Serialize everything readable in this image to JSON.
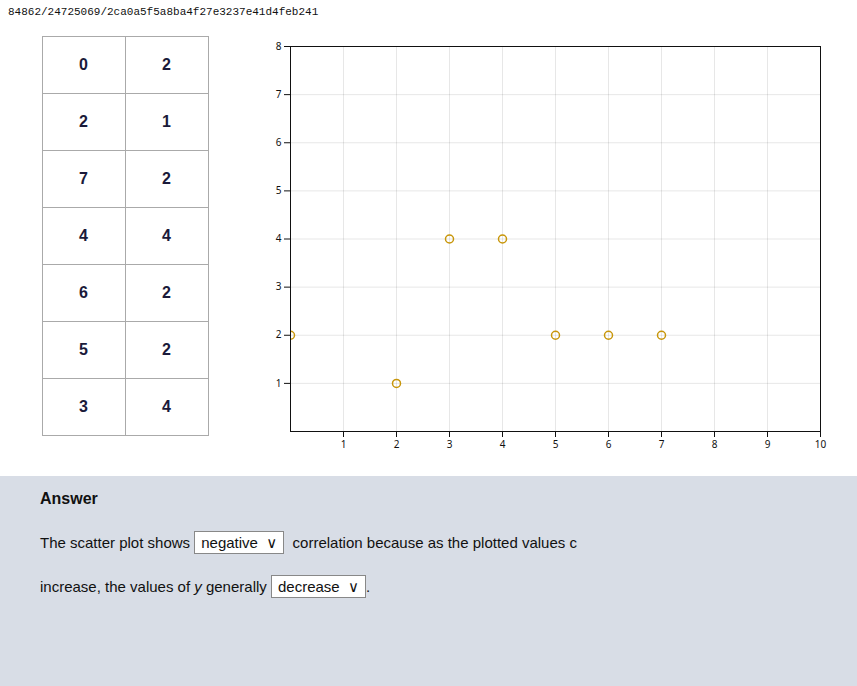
{
  "chart_data": {
    "type": "scatter",
    "title": "84862/24725069/2ca0a5f5a8ba4f27e3237e41d4feb241",
    "table": {
      "col1": [
        0,
        2,
        7,
        4,
        6,
        5,
        3
      ],
      "col2": [
        2,
        1,
        2,
        4,
        2,
        2,
        4
      ]
    },
    "x": [
      0,
      2,
      7,
      4,
      6,
      5,
      3
    ],
    "values": [
      2,
      1,
      2,
      4,
      2,
      2,
      4
    ],
    "color": "#c8960a",
    "marker": "circle",
    "xlim": [
      0,
      10
    ],
    "ylim": [
      0,
      8
    ],
    "xticks": [
      1,
      2,
      3,
      4,
      5,
      6,
      7,
      8,
      9,
      10
    ],
    "yticks": [
      1,
      2,
      3,
      4,
      5,
      6,
      7,
      8
    ],
    "grid": true,
    "annotations": [
      [
        "Answer"
      ],
      [
        "The scatter plot shows ",
        "negative  ∨",
        "  correlation because as the plotted values c"
      ],
      [
        "increase, the values of ",
        "y",
        " generally ",
        "decrease  ∨",
        "."
      ]
    ]
  }
}
